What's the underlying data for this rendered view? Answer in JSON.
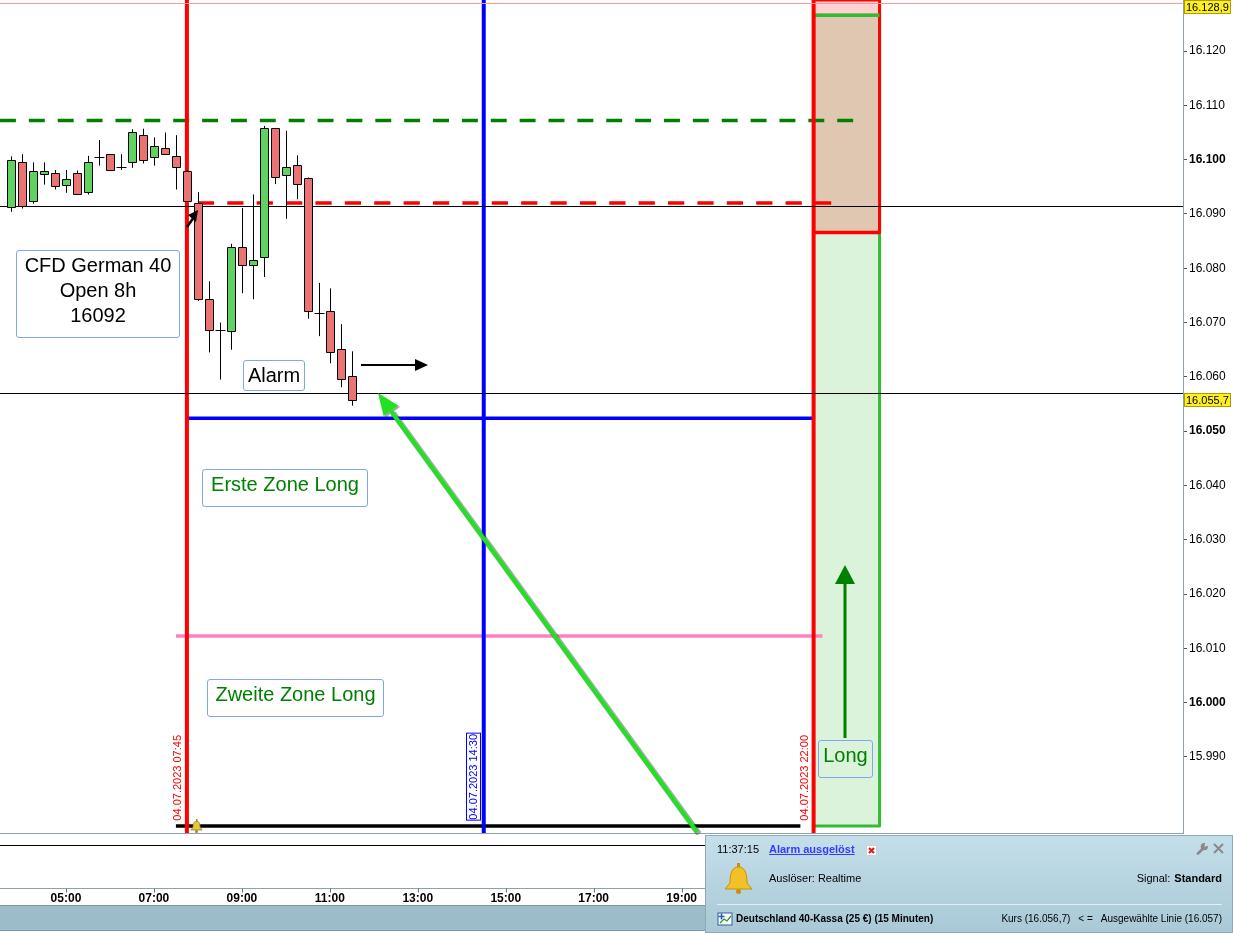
{
  "chart_data": {
    "type": "candlestick",
    "x": [
      "2023-07-04T03:45",
      "2023-07-04T04:00",
      "2023-07-04T04:15",
      "2023-07-04T04:30",
      "2023-07-04T04:45",
      "2023-07-04T05:00",
      "2023-07-04T05:15",
      "2023-07-04T05:30",
      "2023-07-04T05:45",
      "2023-07-04T06:00",
      "2023-07-04T06:15",
      "2023-07-04T06:30",
      "2023-07-04T06:45",
      "2023-07-04T07:00",
      "2023-07-04T07:15",
      "2023-07-04T07:30",
      "2023-07-04T07:45",
      "2023-07-04T08:00",
      "2023-07-04T08:15",
      "2023-07-04T08:30",
      "2023-07-04T08:45",
      "2023-07-04T09:00",
      "2023-07-04T09:15",
      "2023-07-04T09:30",
      "2023-07-04T09:45",
      "2023-07-04T10:00",
      "2023-07-04T10:15",
      "2023-07-04T10:30",
      "2023-07-04T10:45",
      "2023-07-04T11:00",
      "2023-07-04T11:15",
      "2023-07-04T11:30"
    ],
    "ohlc": [
      [
        16091.4,
        16100.6,
        16090.4,
        16100.0
      ],
      [
        16099.5,
        16101.0,
        16091.0,
        16091.4
      ],
      [
        16092.5,
        16099.5,
        16091.9,
        16098.0
      ],
      [
        16097.5,
        16099.5,
        16095.4,
        16098.0
      ],
      [
        16097.5,
        16098.1,
        16094.5,
        16095.1
      ],
      [
        16095.4,
        16098.1,
        16093.9,
        16096.5
      ],
      [
        16097.5,
        16098.0,
        16093.5,
        16093.6
      ],
      [
        16094.0,
        16100.7,
        16093.6,
        16099.5
      ],
      [
        16100.5,
        16103.6,
        16098.9,
        16100.5
      ],
      [
        16101.0,
        16101.0,
        16098.0,
        16098.0
      ],
      [
        16098.6,
        16101.0,
        16098.1,
        16098.6
      ],
      [
        16099.5,
        16105.6,
        16098.5,
        16105.0
      ],
      [
        16104.5,
        16105.7,
        16099.3,
        16099.9
      ],
      [
        16100.5,
        16104.1,
        16098.9,
        16102.5
      ],
      [
        16102.1,
        16105.0,
        16101.0,
        16101.0
      ],
      [
        16100.6,
        16104.5,
        16094.5,
        16098.6
      ],
      [
        16098.0,
        16098.0,
        16092.5,
        16092.5
      ],
      [
        16092,
        16094.0,
        16074.0,
        16074.4
      ],
      [
        16074.3,
        16077.6,
        16064.5,
        16068.6
      ],
      [
        16068.6,
        16070.0,
        16059.5,
        16068.6
      ],
      [
        16068.6,
        16084.5,
        16065.0,
        16084.0
      ],
      [
        16084.0,
        16091.1,
        16075.4,
        16080.6
      ],
      [
        16080.6,
        16093.6,
        16074.3,
        16081.5
      ],
      [
        16082.0,
        16106.2,
        16078.4,
        16105.8
      ],
      [
        16105.8,
        16105.8,
        16095.5,
        16096.7
      ],
      [
        16097.3,
        16105.3,
        16089.1,
        16098.7
      ],
      [
        16099.1,
        16100.8,
        16092.7,
        16095.6
      ],
      [
        16096.7,
        16096.7,
        16070.7,
        16072.2
      ],
      [
        16071.8,
        16077.3,
        16067.5,
        16071.8
      ],
      [
        16072.2,
        16076.3,
        16062.5,
        16064.6
      ],
      [
        16065.2,
        16069.7,
        16058.1,
        16059.7
      ],
      [
        16060.2,
        16064.7,
        16054.7,
        16055.7
      ]
    ],
    "series": [
      {
        "type": "line",
        "x": [
          "2023-07-04T22:00",
          "2023-07-04T23:30"
        ],
        "values": [
          16126.6,
          16126.6
        ],
        "lower": [
          15977.3,
          15977.3
        ],
        "upper": [
          16126.6,
          16126.6
        ],
        "color": "#33bb33"
      },
      {
        "type": "line",
        "x": [
          "2023-07-04T22:00",
          "2023-07-04T23:30"
        ],
        "values": [
          16086.6,
          16086.6
        ],
        "lower": [
          16086.6,
          16086.6
        ],
        "upper": [
          16129.4,
          16129.4
        ],
        "color": "#ff0000"
      },
      {
        "type": "line",
        "x": [
          "2023-07-04T03:30",
          "2023-07-04T22:54"
        ],
        "values": [
          16107.2,
          16107.2
        ],
        "color": "#008000",
        "line_style": "dashed"
      },
      {
        "type": "line",
        "x": [
          "2023-07-04T08:00",
          "2023-07-04T22:24"
        ],
        "values": [
          16092,
          16092
        ],
        "color": "#ff0000",
        "line_style": "dashed"
      },
      {
        "type": "line",
        "x": [
          "2023-07-04T07:45",
          "2023-07-04T22:00"
        ],
        "values": [
          16052.4,
          16052.4
        ],
        "color": "#0000ff"
      },
      {
        "type": "line",
        "x": [
          "2023-07-04T07:30",
          "2023-07-04T22:12"
        ],
        "values": [
          16012.3,
          16012.3
        ],
        "color": "#ff80c0"
      },
      {
        "type": "line",
        "x": [
          "2023-07-04T07:30",
          "2023-07-04T21:42"
        ],
        "values": [
          15977.3,
          15977.3
        ],
        "color": "#000000"
      }
    ],
    "xlim": [
      "2023-07-04T03:30",
      "2023-07-05T06:24"
    ],
    "ylim": [
      15976,
      16129.4
    ],
    "xticks": [
      {
        "value": "2023-07-04T05:00",
        "label": "05:00"
      },
      {
        "value": "2023-07-04T07:00",
        "label": "07:00"
      },
      {
        "value": "2023-07-04T09:00",
        "label": "09:00"
      },
      {
        "value": "2023-07-04T11:00",
        "label": "11:00"
      },
      {
        "value": "2023-07-04T13:00",
        "label": "13:00"
      },
      {
        "value": "2023-07-04T15:00",
        "label": "15:00"
      },
      {
        "value": "2023-07-04T17:00",
        "label": "17:00"
      },
      {
        "value": "2023-07-04T19:00",
        "label": "19:00"
      }
    ],
    "yticks": [
      {
        "value": 15990,
        "label": "15.990"
      },
      {
        "value": 16000,
        "label": "16.000"
      },
      {
        "value": 16010,
        "label": "16.010"
      },
      {
        "value": 16020,
        "label": "16.020"
      },
      {
        "value": 16030,
        "label": "16.030"
      },
      {
        "value": 16040,
        "label": "16.040"
      },
      {
        "value": 16050,
        "label": "16.050"
      },
      {
        "value": 16060,
        "label": "16.060"
      },
      {
        "value": 16070,
        "label": "16.070"
      },
      {
        "value": 16080,
        "label": "16.080"
      },
      {
        "value": 16090,
        "label": "16.090"
      },
      {
        "value": 16100,
        "label": "16.100"
      },
      {
        "value": 16110,
        "label": "16.110"
      },
      {
        "value": 16120,
        "label": "16.120"
      }
    ],
    "ref_lines": [
      {
        "axis": "x",
        "value": "2023-07-04T07:45",
        "label": "04.07.2023 07:45",
        "color": "#ff0000"
      },
      {
        "axis": "x",
        "value": "2023-07-04T14:30",
        "label": "04.07.2023 14:30",
        "color": "#0000ff"
      },
      {
        "axis": "x",
        "value": "2023-07-04T22:00",
        "label": "04.07.2023 22:00",
        "color": "#ff0000"
      },
      {
        "axis": "y",
        "value": 16091.4,
        "color": "#000000"
      },
      {
        "axis": "y",
        "value": 16057,
        "color": "#000000"
      },
      {
        "axis": "y",
        "value": 16128.9,
        "label": "16.128,9",
        "color": "#ff9999"
      }
    ],
    "annotations": [
      "CFD German 40\nOpen 8h\n16092",
      "Alarm",
      "Erste Zone Long",
      "Zweite Zone Long",
      "Long",
      "11:37:15",
      "Alarm ausgelöst",
      "Auslöser: Realtime",
      "Signal:",
      "Standard",
      "Deutschland 40-Kassa (25 €) (15 Minuten)",
      "Kurs (16.056,7)",
      "< =",
      "Ausgewählte Linie (16.057)",
      "16.055,7"
    ]
  }
}
